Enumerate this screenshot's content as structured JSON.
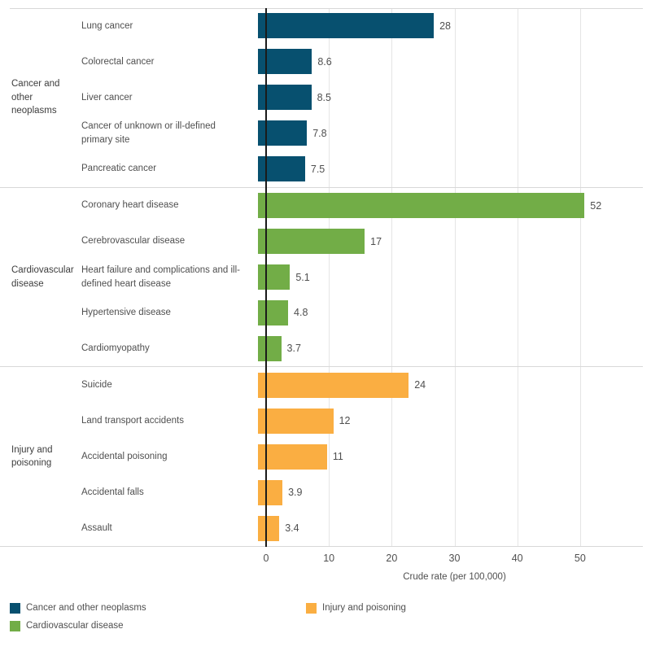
{
  "chart_data": {
    "type": "bar",
    "orientation": "horizontal",
    "title": "",
    "xlabel": "Crude rate (per 100,000)",
    "ylabel": "",
    "axis": {
      "min": 0,
      "max": 60,
      "ticks": [
        0,
        10,
        20,
        30,
        40,
        50
      ]
    },
    "grid": true,
    "legend_position": "bottom",
    "groups": [
      {
        "label": "Cancer and other neoplasms",
        "color": "#07506F",
        "items": [
          {
            "label": "Lung cancer",
            "value": 28,
            "value_label": "28"
          },
          {
            "label": "Colorectal cancer",
            "value": 8.6,
            "value_label": "8.6"
          },
          {
            "label": "Liver cancer",
            "value": 8.5,
            "value_label": "8.5"
          },
          {
            "label": "Cancer of unknown or ill-defined primary site",
            "value": 7.8,
            "value_label": "7.8"
          },
          {
            "label": "Pancreatic cancer",
            "value": 7.5,
            "value_label": "7.5"
          }
        ]
      },
      {
        "label": "Cardiovascular disease",
        "color": "#72AD47",
        "items": [
          {
            "label": "Coronary heart disease",
            "value": 52,
            "value_label": "52"
          },
          {
            "label": "Cerebrovascular disease",
            "value": 17,
            "value_label": "17"
          },
          {
            "label": "Heart failure and complications and ill-defined heart disease",
            "value": 5.1,
            "value_label": "5.1"
          },
          {
            "label": "Hypertensive disease",
            "value": 4.8,
            "value_label": "4.8"
          },
          {
            "label": "Cardiomyopathy",
            "value": 3.7,
            "value_label": "3.7"
          }
        ]
      },
      {
        "label": "Injury and poisoning",
        "color": "#FAAE42",
        "items": [
          {
            "label": "Suicide",
            "value": 24,
            "value_label": "24"
          },
          {
            "label": "Land transport accidents",
            "value": 12,
            "value_label": "12"
          },
          {
            "label": "Accidental poisoning",
            "value": 11,
            "value_label": "11"
          },
          {
            "label": "Accidental falls",
            "value": 3.9,
            "value_label": "3.9"
          },
          {
            "label": "Assault",
            "value": 3.4,
            "value_label": "3.4"
          }
        ]
      }
    ],
    "legend": [
      {
        "label": "Cancer and other neoplasms",
        "color": "#07506F"
      },
      {
        "label": "Cardiovascular disease",
        "color": "#72AD47"
      },
      {
        "label": "Injury and poisoning",
        "color": "#FAAE42"
      }
    ]
  }
}
